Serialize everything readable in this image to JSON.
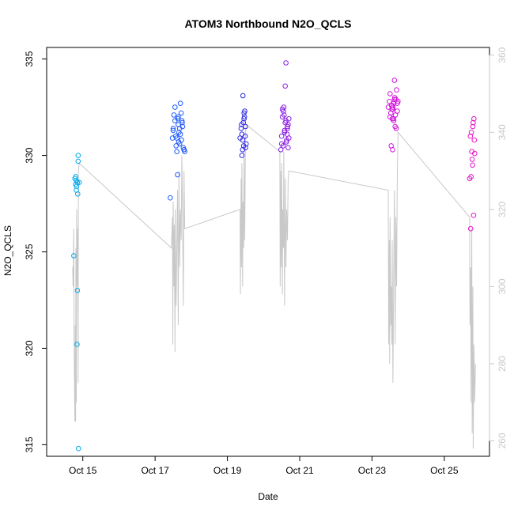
{
  "chart_data": {
    "type": "scatter",
    "title": "ATOM3 Northbound N2O_QCLS",
    "xlabel": "Date",
    "ylabel": "N2O_QCLS",
    "x_tick_labels": [
      "Oct 15",
      "Oct 17",
      "Oct 19",
      "Oct 21",
      "Oct 23",
      "Oct 25"
    ],
    "x_tick_values": [
      15,
      17,
      19,
      21,
      23,
      25
    ],
    "xlim": [
      14.0,
      26.25
    ],
    "ylim": [
      314.4,
      335.6
    ],
    "y_ticks": [
      315,
      320,
      325,
      330,
      335
    ],
    "y2_ticks": [
      260,
      280,
      300,
      320,
      340,
      360
    ],
    "y2lim": [
      256,
      362
    ],
    "grid": false,
    "point_series": {
      "marker": "open-circle",
      "x": [
        14.75,
        14.78,
        14.8,
        14.82,
        14.85,
        14.87,
        14.9,
        14.8,
        14.84,
        14.86,
        14.83,
        14.88,
        14.82,
        14.85,
        14.87,
        17.42,
        17.48,
        17.5,
        17.52,
        17.55,
        17.57,
        17.6,
        17.62,
        17.64,
        17.66,
        17.68,
        17.7,
        17.72,
        17.74,
        17.76,
        17.78,
        17.8,
        17.82,
        17.5,
        17.55,
        17.6,
        17.65,
        17.7,
        17.75,
        17.8,
        17.58,
        17.63,
        17.68,
        17.73,
        17.64,
        19.35,
        19.38,
        19.4,
        19.42,
        19.44,
        19.46,
        19.48,
        19.5,
        19.52,
        19.4,
        19.43,
        19.46,
        19.49,
        19.45,
        19.42,
        19.47,
        19.5,
        19.39,
        20.48,
        20.5,
        20.52,
        20.54,
        20.56,
        20.58,
        20.6,
        20.62,
        20.64,
        20.66,
        20.68,
        20.7,
        20.5,
        20.55,
        20.6,
        20.65,
        20.7,
        20.52,
        20.58,
        20.63,
        20.68,
        20.57,
        20.62,
        20.66,
        23.45,
        23.48,
        23.5,
        23.52,
        23.54,
        23.56,
        23.58,
        23.6,
        23.62,
        23.64,
        23.66,
        23.68,
        23.7,
        23.72,
        23.5,
        23.55,
        23.6,
        23.65,
        23.7,
        23.53,
        23.57,
        23.62,
        23.67,
        23.58,
        23.63,
        23.6,
        23.55,
        25.7,
        25.72,
        25.74,
        25.76,
        25.78,
        25.8,
        25.82,
        25.84,
        25.75,
        25.79,
        25.83,
        25.77,
        25.81,
        25.73
      ],
      "y": [
        324.8,
        328.8,
        328.5,
        328.2,
        323.0,
        330.0,
        328.6,
        328.9,
        320.2,
        328.0,
        328.4,
        314.8,
        328.7,
        328.6,
        329.7,
        327.8,
        330.9,
        331.4,
        332.1,
        332.5,
        331.0,
        330.2,
        329.0,
        331.6,
        331.2,
        330.6,
        332.7,
        332.2,
        331.8,
        331.5,
        330.4,
        330.3,
        330.2,
        331.3,
        331.8,
        330.9,
        330.7,
        331.1,
        331.7,
        330.3,
        330.5,
        331.9,
        331.4,
        330.8,
        332.0,
        330.9,
        331.4,
        331.1,
        330.3,
        331.7,
        332.2,
        332.3,
        331.5,
        330.6,
        330.0,
        333.1,
        331.9,
        331.0,
        330.5,
        330.8,
        332.0,
        330.4,
        331.6,
        330.3,
        331.0,
        332.0,
        330.5,
        332.5,
        331.2,
        333.6,
        334.8,
        330.8,
        331.5,
        330.4,
        331.9,
        330.6,
        332.3,
        331.7,
        331.1,
        330.9,
        332.4,
        331.3,
        330.7,
        331.6,
        332.1,
        331.8,
        331.4,
        332.5,
        332.8,
        333.2,
        332.2,
        332.6,
        331.9,
        332.4,
        332.7,
        333.9,
        331.5,
        332.9,
        333.4,
        332.3,
        332.8,
        332.0,
        332.6,
        331.8,
        332.1,
        332.7,
        330.5,
        330.3,
        332.9,
        331.4,
        332.5,
        333.0,
        331.9,
        332.4,
        328.8,
        331.0,
        328.9,
        330.2,
        329.5,
        331.7,
        331.9,
        330.1,
        331.2,
        331.5,
        330.8,
        329.8,
        326.9,
        326.2
      ]
    },
    "line_series": {
      "color": "#c8c8c8",
      "axis": "right",
      "x": [
        14.72,
        14.73,
        14.75,
        14.76,
        14.78,
        14.79,
        14.8,
        14.81,
        14.82,
        14.83,
        14.85,
        14.86,
        14.87,
        14.88,
        14.9,
        17.45,
        17.48,
        17.49,
        17.5,
        17.52,
        17.53,
        17.55,
        17.56,
        17.58,
        17.6,
        17.62,
        17.64,
        17.66,
        17.68,
        17.7,
        17.72,
        17.74,
        17.76,
        17.78,
        17.8,
        17.82,
        19.35,
        19.36,
        19.38,
        19.39,
        19.4,
        19.42,
        19.43,
        19.45,
        19.46,
        19.48,
        19.5,
        19.52,
        20.45,
        20.46,
        20.48,
        20.49,
        20.5,
        20.52,
        20.53,
        20.55,
        20.56,
        20.58,
        20.6,
        20.62,
        20.64,
        20.66,
        20.68,
        20.7,
        23.45,
        23.46,
        23.48,
        23.49,
        23.5,
        23.52,
        23.53,
        23.55,
        23.56,
        23.58,
        23.6,
        23.62,
        23.64,
        23.66,
        23.68,
        23.7,
        23.72,
        25.7,
        25.71,
        25.73,
        25.74,
        25.76,
        25.77,
        25.79,
        25.8,
        25.82,
        25.84,
        25.86
      ],
      "y": [
        305,
        300,
        315,
        285,
        265,
        290,
        265,
        310,
        270,
        320,
        300,
        315,
        275,
        330,
        332,
        310,
        318,
        285,
        322,
        300,
        316,
        283,
        320,
        295,
        310,
        325,
        290,
        330,
        305,
        320,
        312,
        334,
        318,
        295,
        330,
        315,
        320,
        298,
        328,
        305,
        332,
        300,
        322,
        310,
        335,
        312,
        340,
        342,
        335,
        300,
        330,
        305,
        332,
        298,
        320,
        310,
        335,
        295,
        328,
        305,
        320,
        312,
        328,
        330,
        325,
        285,
        312,
        280,
        318,
        290,
        300,
        285,
        312,
        275,
        305,
        325,
        285,
        318,
        300,
        328,
        340,
        318,
        290,
        305,
        270,
        315,
        262,
        300,
        258,
        285,
        270,
        280
      ]
    }
  }
}
